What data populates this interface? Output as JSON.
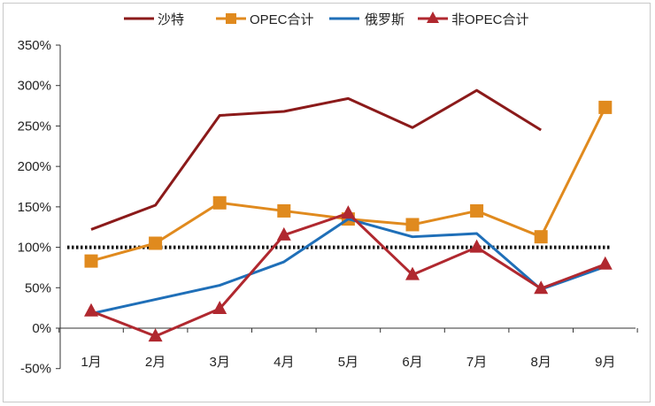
{
  "chart_data": {
    "type": "line",
    "categories": [
      "1月",
      "2月",
      "3月",
      "4月",
      "5月",
      "6月",
      "7月",
      "8月",
      "9月"
    ],
    "ylim": [
      -50,
      350
    ],
    "yticks": [
      "350%",
      "300%",
      "250%",
      "200%",
      "150%",
      "100%",
      "50%",
      "0%",
      "-50%"
    ],
    "yticks_values": [
      350,
      300,
      250,
      200,
      150,
      100,
      50,
      0,
      -50
    ],
    "reference_line": 100,
    "grid": false,
    "legend_position": "top",
    "series": [
      {
        "name": "沙特",
        "color": "#8b1a1a",
        "marker": "none",
        "values": [
          122,
          152,
          263,
          268,
          284,
          248,
          294,
          245,
          null
        ]
      },
      {
        "name": "OPEC合计",
        "color": "#e08a1e",
        "marker": "square",
        "values": [
          83,
          105,
          155,
          145,
          135,
          128,
          145,
          113,
          273
        ]
      },
      {
        "name": "俄罗斯",
        "color": "#1f6fb8",
        "marker": "none",
        "values": [
          18,
          null,
          53,
          82,
          135,
          113,
          117,
          48,
          76
        ]
      },
      {
        "name": "非OPEC合计",
        "color": "#b0282f",
        "marker": "triangle",
        "values": [
          21,
          -10,
          24,
          115,
          142,
          66,
          100,
          49,
          79
        ]
      }
    ]
  }
}
